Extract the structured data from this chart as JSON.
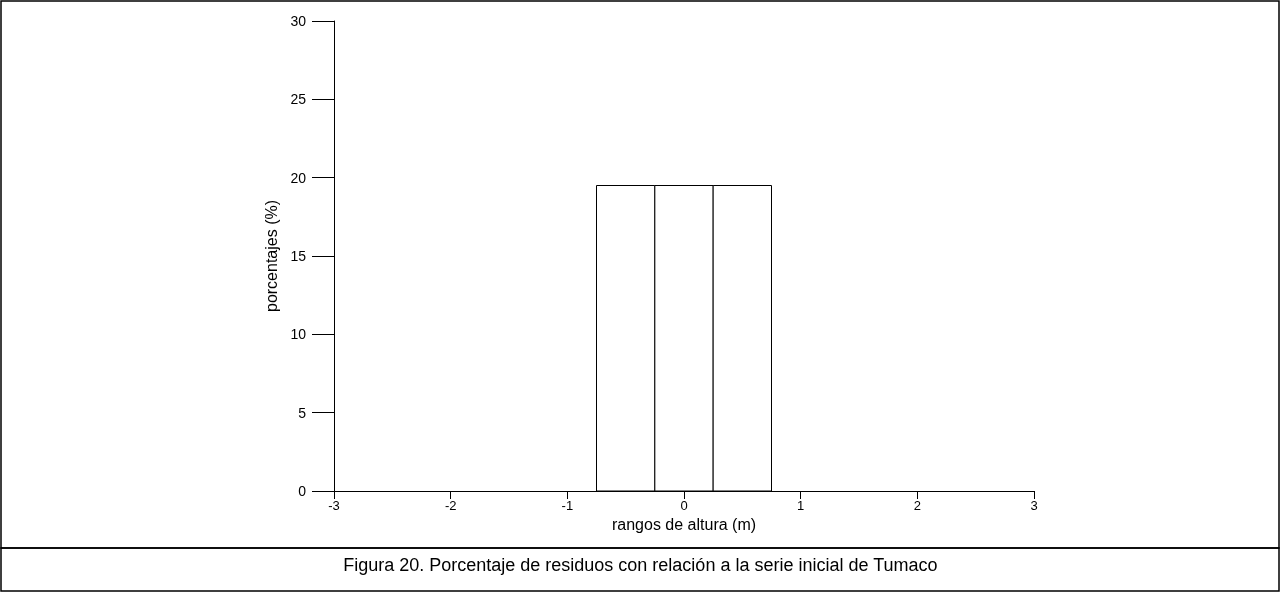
{
  "chart_data": {
    "type": "histogram",
    "xlabel": "rangos de altura (m)",
    "ylabel": "porcentajes (%)",
    "bins": [
      -0.75,
      -0.25,
      0.25,
      0.75
    ],
    "values": [
      19.5,
      19.5,
      19.5
    ],
    "color": "#ffffff",
    "xlim": [
      -3,
      3
    ],
    "xticks": [
      -3,
      -2,
      -1,
      0,
      1,
      2,
      3
    ],
    "ylim": [
      0,
      30
    ],
    "yticks": [
      0,
      5,
      10,
      15,
      20,
      25,
      30
    ],
    "grid": false,
    "annotations": [
      "Figura 20. Porcentaje de residuos con relación a la serie inicial de Tumaco"
    ]
  }
}
